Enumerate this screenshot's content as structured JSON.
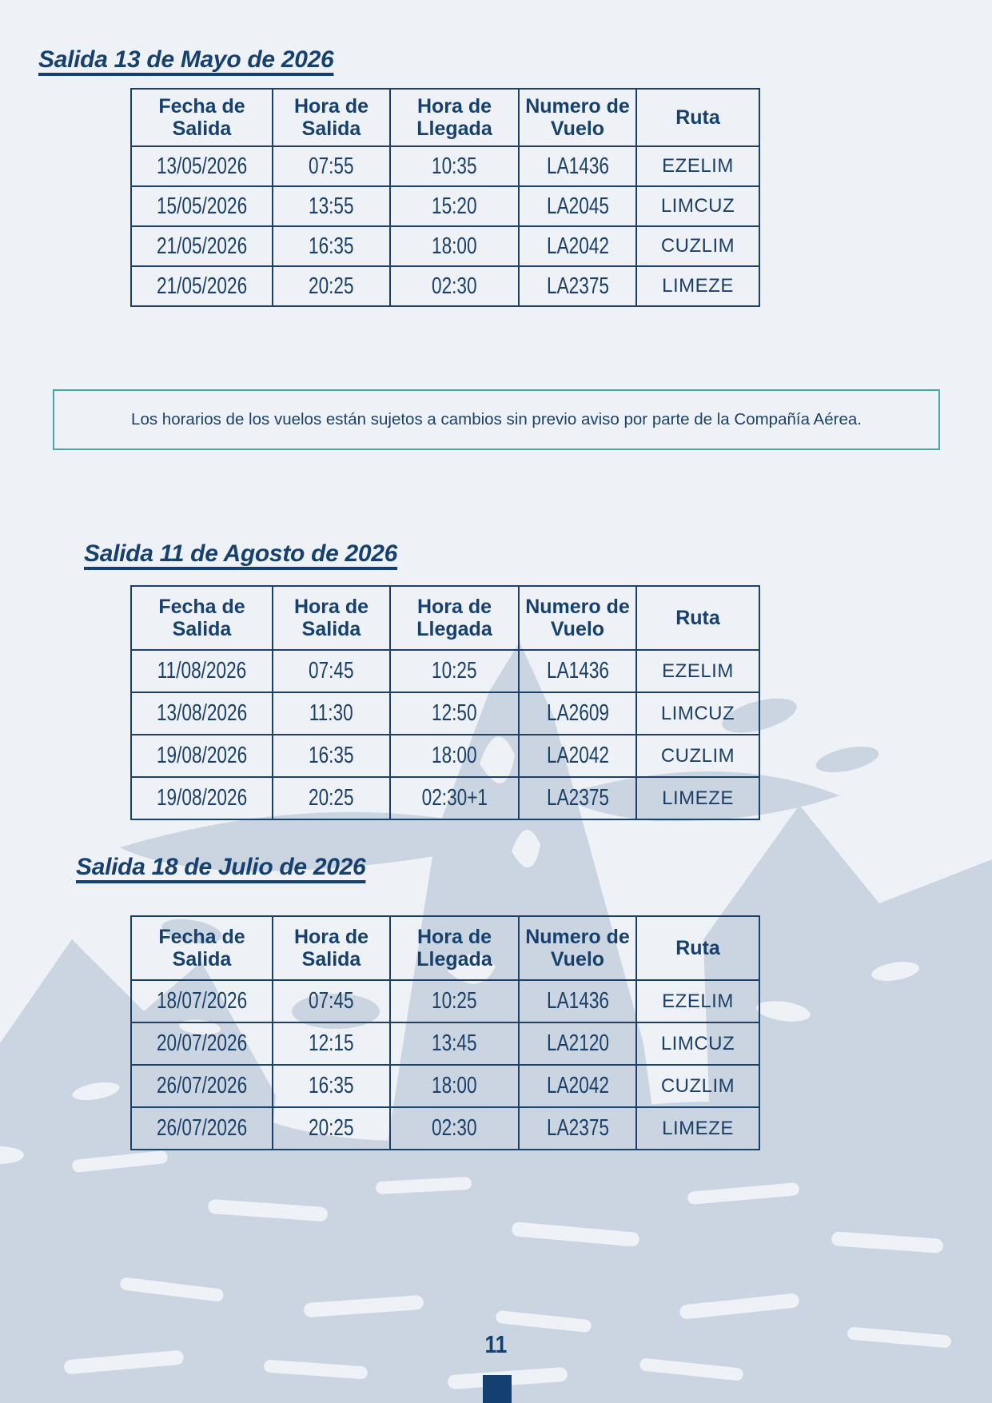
{
  "page": {
    "number": "11",
    "background_color": "#eef1f5",
    "accent_color": "#16406d",
    "table_border_color": "#1d4067",
    "note_border_color": "#49a6a6",
    "watermark_color": "#cbd5e1",
    "watermark": "machu-picchu-mountain-illustration"
  },
  "table_columns": [
    "Fecha de Salida",
    "Hora de Salida",
    "Hora de Llegada",
    "Numero de Vuelo",
    "Ruta"
  ],
  "sections": [
    {
      "title": "Salida 13 de Mayo de 2026",
      "rows": [
        [
          "13/05/2026",
          "07:55",
          "10:35",
          "LA1436",
          "EZELIM"
        ],
        [
          "15/05/2026",
          "13:55",
          "15:20",
          "LA2045",
          "LIMCUZ"
        ],
        [
          "21/05/2026",
          "16:35",
          "18:00",
          "LA2042",
          "CUZLIM"
        ],
        [
          "21/05/2026",
          "20:25",
          "02:30",
          "LA2375",
          "LIMEZE"
        ]
      ]
    },
    {
      "title": "Salida 11 de Agosto de 2026",
      "rows": [
        [
          "11/08/2026",
          "07:45",
          "10:25",
          "LA1436",
          "EZELIM"
        ],
        [
          "13/08/2026",
          "11:30",
          "12:50",
          "LA2609",
          "LIMCUZ"
        ],
        [
          "19/08/2026",
          "16:35",
          "18:00",
          "LA2042",
          "CUZLIM"
        ],
        [
          "19/08/2026",
          "20:25",
          "02:30+1",
          "LA2375",
          "LIMEZE"
        ]
      ]
    },
    {
      "title": "Salida 18 de Julio de 2026",
      "rows": [
        [
          "18/07/2026",
          "07:45",
          "10:25",
          "LA1436",
          "EZELIM"
        ],
        [
          "20/07/2026",
          "12:15",
          "13:45",
          "LA2120",
          "LIMCUZ"
        ],
        [
          "26/07/2026",
          "16:35",
          "18:00",
          "LA2042",
          "CUZLIM"
        ],
        [
          "26/07/2026",
          "20:25",
          "02:30",
          "LA2375",
          "LIMEZE"
        ]
      ]
    }
  ],
  "note": "Los horarios de los vuelos están sujetos a cambios sin previo aviso por parte de la Compañía Aérea."
}
